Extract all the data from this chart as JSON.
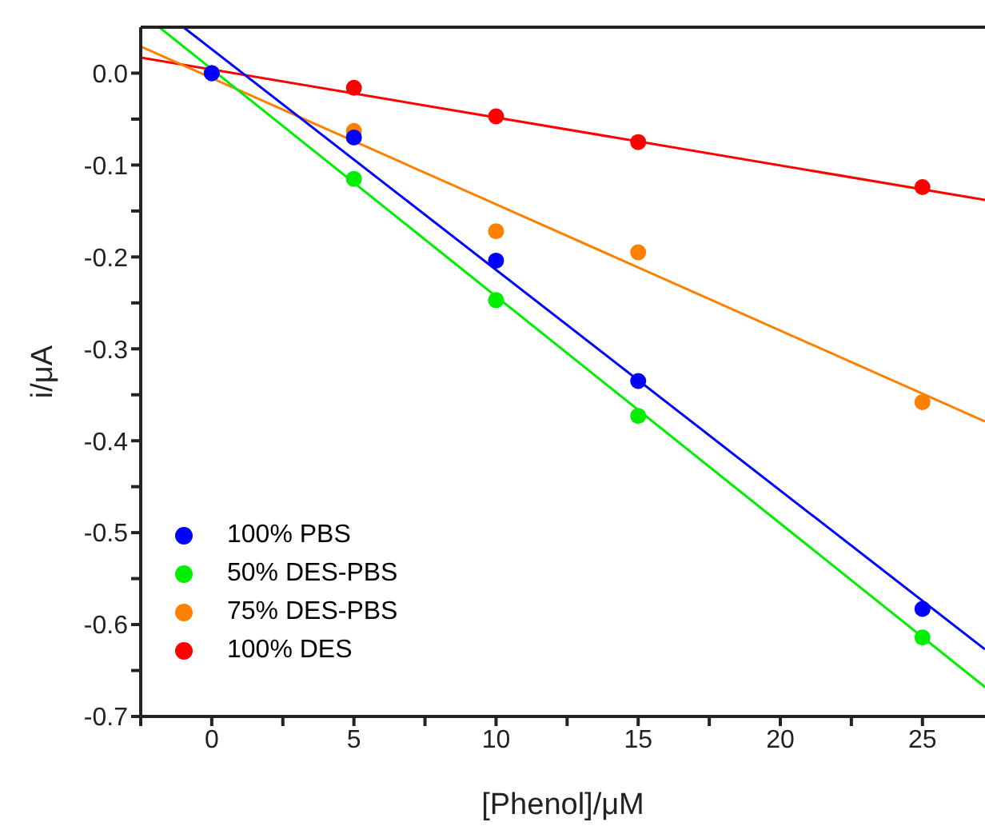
{
  "chart_data": {
    "type": "scatter",
    "xlabel": "[Phenol]/μM",
    "ylabel": "i/μA",
    "xlim": [
      -2.5,
      27.2
    ],
    "ylim": [
      -0.7,
      0.05
    ],
    "xticks": [
      {
        "value": -2.5,
        "label": null
      },
      0,
      {
        "value": 2.5,
        "label": null
      },
      5,
      {
        "value": 7.5,
        "label": null
      },
      10,
      {
        "value": 12.5,
        "label": null
      },
      15,
      {
        "value": 17.5,
        "label": null
      },
      20,
      {
        "value": 22.5,
        "label": null
      },
      25
    ],
    "yticks": [
      -0.7,
      {
        "value": -0.65,
        "label": null
      },
      -0.6,
      {
        "value": -0.55,
        "label": null
      },
      -0.5,
      {
        "value": -0.45,
        "label": null
      },
      -0.4,
      {
        "value": -0.35,
        "label": null
      },
      -0.3,
      {
        "value": -0.25,
        "label": null
      },
      -0.2,
      {
        "value": -0.15,
        "label": null
      },
      -0.1,
      {
        "value": -0.05,
        "label": null
      },
      {
        "value": 0,
        "label": "0.0"
      }
    ],
    "grid": false,
    "legend": "bottom left",
    "line_style": "solid",
    "series": [
      {
        "name": "100% PBS",
        "marker": "circle",
        "color": "#0000ff",
        "x": [
          0,
          5,
          10,
          15,
          25
        ],
        "values": [
          0,
          -0.07,
          -0.204,
          -0.335,
          -0.583
        ]
      },
      {
        "name": "50% DES-PBS",
        "marker": "circle",
        "color": "#00ee00",
        "x": [
          0,
          5,
          10,
          15,
          25
        ],
        "values": [
          0,
          -0.115,
          -0.247,
          -0.373,
          -0.614
        ]
      },
      {
        "name": "75% DES-PBS",
        "marker": "circle",
        "color": "#ff8000",
        "x": [
          0,
          5,
          10,
          15,
          25
        ],
        "values": [
          0,
          -0.063,
          -0.172,
          -0.195,
          -0.358
        ]
      },
      {
        "name": "100% DES",
        "marker": "circle",
        "color": "#ff0000",
        "x": [
          0,
          5,
          10,
          15,
          25
        ],
        "values": [
          0,
          -0.016,
          -0.047,
          -0.075,
          -0.124
        ]
      },
      {
        "type": "line",
        "color": "#0000ff",
        "x": [
          -1.0,
          27.2
        ],
        "values": [
          0.05,
          -0.627
        ]
      },
      {
        "type": "line",
        "color": "#00ee00",
        "x": [
          -1.85,
          27.2
        ],
        "values": [
          0.05,
          -0.668
        ]
      },
      {
        "type": "line",
        "color": "#ff8000",
        "x": [
          -2.5,
          27.2
        ],
        "values": [
          0.029,
          -0.379
        ]
      },
      {
        "type": "line",
        "color": "#ff0000",
        "x": [
          -2.5,
          27.2
        ],
        "values": [
          0.017,
          -0.138
        ]
      }
    ]
  }
}
